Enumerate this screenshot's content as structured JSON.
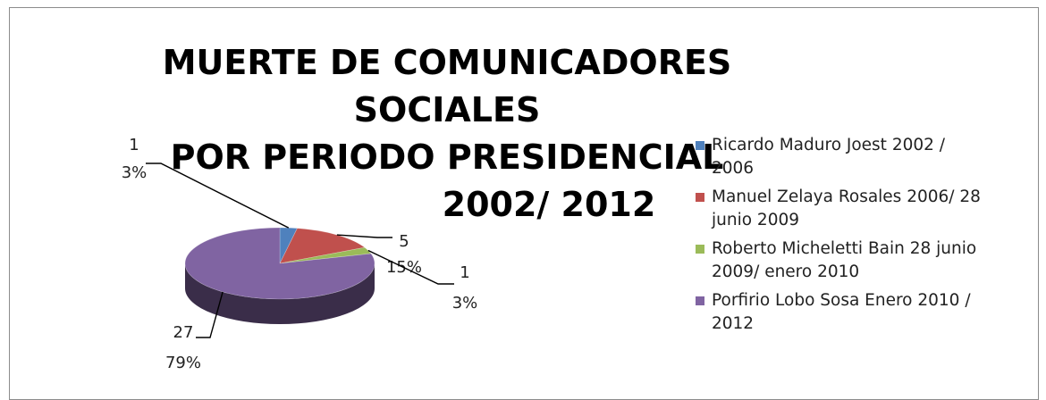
{
  "chart_data": {
    "type": "pie",
    "title": [
      "MUERTE DE COMUNICADORES SOCIALES",
      "POR PERIODO PRESIDENCIAL",
      "2002/ 2012"
    ],
    "legend_position": "right",
    "three_d": true,
    "slices": [
      {
        "name": "Ricardo Maduro Joest 2002 / 2006",
        "value": 1,
        "percent": "3%",
        "value_label": "1",
        "color": "#4f81bd"
      },
      {
        "name": "Manuel Zelaya Rosales 2006/  28 junio 2009",
        "value": 5,
        "percent": "15%",
        "value_label": "5",
        "color": "#c0504d"
      },
      {
        "name": "Roberto Micheletti Bain 28 junio 2009/ enero 2010",
        "value": 1,
        "percent": "3%",
        "value_label": "1",
        "color": "#9bbb59"
      },
      {
        "name": "Porfirio Lobo Sosa Enero 2010 / 2012",
        "value": 27,
        "percent": "79%",
        "value_label": "27",
        "color": "#8064a2"
      }
    ]
  },
  "legend": {
    "items": [
      {
        "lines": [
          "Ricardo Maduro Joest 2002 /",
          "2006"
        ],
        "color": "#4f81bd"
      },
      {
        "lines": [
          "Manuel Zelaya Rosales 2006/  28",
          "junio 2009"
        ],
        "color": "#c0504d"
      },
      {
        "lines": [
          "Roberto Micheletti Bain 28 junio",
          "2009/ enero 2010"
        ],
        "color": "#9bbb59"
      },
      {
        "lines": [
          "Porfirio Lobo Sosa Enero 2010 /",
          "2012"
        ],
        "color": "#8064a2"
      }
    ]
  }
}
